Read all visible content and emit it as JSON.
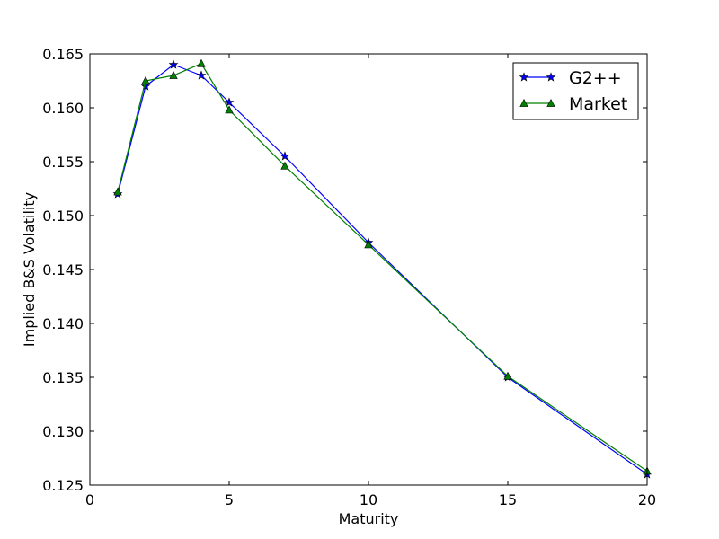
{
  "chart_data": {
    "type": "line",
    "title": "",
    "xlabel": "Maturity",
    "ylabel": "Implied B&S Volatility",
    "xlim": [
      0,
      20
    ],
    "ylim": [
      0.125,
      0.165
    ],
    "xticks": [
      0,
      5,
      10,
      15,
      20
    ],
    "xtick_labels": [
      "0",
      "5",
      "10",
      "15",
      "20"
    ],
    "yticks": [
      0.125,
      0.13,
      0.135,
      0.14,
      0.145,
      0.15,
      0.155,
      0.16,
      0.165
    ],
    "ytick_labels": [
      "0.125",
      "0.130",
      "0.135",
      "0.140",
      "0.145",
      "0.150",
      "0.155",
      "0.160",
      "0.165"
    ],
    "grid": false,
    "legend_position": "top-right",
    "series": [
      {
        "name": "G2++",
        "color": "#0000ff",
        "marker": "star",
        "x": [
          1,
          2,
          3,
          4,
          5,
          7,
          10,
          15,
          20
        ],
        "y": [
          0.152,
          0.162,
          0.164,
          0.163,
          0.1605,
          0.1555,
          0.1475,
          0.135,
          0.126
        ]
      },
      {
        "name": "Market",
        "color": "#008000",
        "marker": "triangle",
        "x": [
          1,
          2,
          3,
          4,
          5,
          7,
          10,
          15,
          20
        ],
        "y": [
          0.1522,
          0.1625,
          0.163,
          0.1641,
          0.1598,
          0.1546,
          0.1473,
          0.1351,
          0.1263
        ]
      }
    ]
  }
}
